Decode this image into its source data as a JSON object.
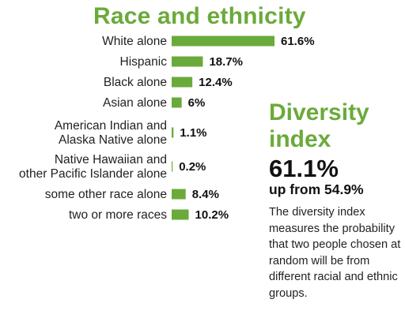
{
  "chart_data": {
    "type": "bar",
    "orientation": "horizontal",
    "title": "Race and ethnicity",
    "categories": [
      "White alone",
      "Hispanic",
      "Black alone",
      "Asian alone",
      "American Indian and\nAlaska Native alone",
      "Native Hawaiian and\nother Pacific Islander alone",
      "some other race alone",
      "two or more races"
    ],
    "values": [
      61.6,
      18.7,
      12.4,
      6,
      1.1,
      0.2,
      8.4,
      10.2
    ],
    "value_labels": [
      "61.6%",
      "18.7%",
      "12.4%",
      "6%",
      "1.1%",
      "0.2%",
      "8.4%",
      "10.2%"
    ],
    "bar_color": "#6aaa3a",
    "grid": false
  },
  "diversity": {
    "title_line1": "Diversity",
    "title_line2": "index",
    "value": "61.1%",
    "change": "up from 54.9%",
    "description": "The diversity index measures the probability that two people chosen at random will be from different racial and ethnic groups."
  },
  "colors": {
    "accent": "#6aaa3a",
    "text": "#111111"
  }
}
